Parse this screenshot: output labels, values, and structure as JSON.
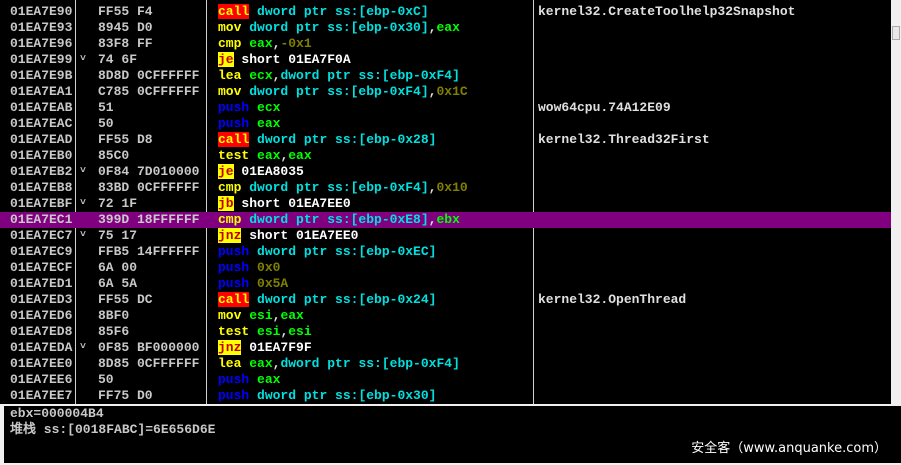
{
  "rows": [
    {
      "addr": "01EA7E90",
      "hex": "FF55 F4",
      "arrow": false,
      "ops": [
        [
          "call",
          "call"
        ],
        [
          " ",
          "p"
        ],
        [
          "dword ptr ss:[ebp-0xC]",
          "mem"
        ]
      ],
      "comment": "kernel32.CreateToolhelp32Snapshot"
    },
    {
      "addr": "01EA7E93",
      "hex": "8945 D0",
      "arrow": false,
      "ops": [
        [
          "mov",
          "ins"
        ],
        [
          " ",
          "p"
        ],
        [
          "dword ptr ss:[ebp-0x30]",
          "mem"
        ],
        [
          ",",
          "p"
        ],
        [
          "eax",
          "reg"
        ]
      ],
      "comment": ""
    },
    {
      "addr": "01EA7E96",
      "hex": "83F8 FF",
      "arrow": false,
      "ops": [
        [
          "cmp",
          "ins"
        ],
        [
          " ",
          "p"
        ],
        [
          "eax",
          "reg"
        ],
        [
          ",",
          "p"
        ],
        [
          "-0x1",
          "imm"
        ]
      ],
      "comment": ""
    },
    {
      "addr": "01EA7E99",
      "hex": "74 6F",
      "arrow": true,
      "ops": [
        [
          "je",
          "jmp"
        ],
        [
          " short 01EA7F0A",
          "tgt"
        ]
      ],
      "comment": ""
    },
    {
      "addr": "01EA7E9B",
      "hex": "8D8D 0CFFFFFF",
      "arrow": false,
      "ops": [
        [
          "lea",
          "ins"
        ],
        [
          " ",
          "p"
        ],
        [
          "ecx",
          "reg"
        ],
        [
          ",",
          "p"
        ],
        [
          "dword ptr ss:[ebp-0xF4]",
          "mem"
        ]
      ],
      "comment": ""
    },
    {
      "addr": "01EA7EA1",
      "hex": "C785 0CFFFFFF",
      "arrow": false,
      "ops": [
        [
          "mov",
          "ins"
        ],
        [
          " ",
          "p"
        ],
        [
          "dword ptr ss:[ebp-0xF4]",
          "mem"
        ],
        [
          ",",
          "p"
        ],
        [
          "0x1C",
          "imm"
        ]
      ],
      "comment": ""
    },
    {
      "addr": "01EA7EAB",
      "hex": "51",
      "arrow": false,
      "ops": [
        [
          "push",
          "push"
        ],
        [
          " ",
          "p"
        ],
        [
          "ecx",
          "reg"
        ]
      ],
      "comment": "wow64cpu.74A12E09"
    },
    {
      "addr": "01EA7EAC",
      "hex": "50",
      "arrow": false,
      "ops": [
        [
          "push",
          "push"
        ],
        [
          " ",
          "p"
        ],
        [
          "eax",
          "reg"
        ]
      ],
      "comment": ""
    },
    {
      "addr": "01EA7EAD",
      "hex": "FF55 D8",
      "arrow": false,
      "ops": [
        [
          "call",
          "call"
        ],
        [
          " ",
          "p"
        ],
        [
          "dword ptr ss:[ebp-0x28]",
          "mem"
        ]
      ],
      "comment": "kernel32.Thread32First"
    },
    {
      "addr": "01EA7EB0",
      "hex": "85C0",
      "arrow": false,
      "ops": [
        [
          "test",
          "ins"
        ],
        [
          " ",
          "p"
        ],
        [
          "eax",
          "reg"
        ],
        [
          ",",
          "p"
        ],
        [
          "eax",
          "reg"
        ]
      ],
      "comment": ""
    },
    {
      "addr": "01EA7EB2",
      "hex": "0F84 7D010000",
      "arrow": true,
      "ops": [
        [
          "je",
          "jmp"
        ],
        [
          " 01EA8035",
          "tgt"
        ]
      ],
      "comment": ""
    },
    {
      "addr": "01EA7EB8",
      "hex": "83BD 0CFFFFFF",
      "arrow": false,
      "ops": [
        [
          "cmp",
          "ins"
        ],
        [
          " ",
          "p"
        ],
        [
          "dword ptr ss:[ebp-0xF4]",
          "mem"
        ],
        [
          ",",
          "p"
        ],
        [
          "0x10",
          "imm"
        ]
      ],
      "comment": ""
    },
    {
      "addr": "01EA7EBF",
      "hex": "72 1F",
      "arrow": true,
      "ops": [
        [
          "jb",
          "jmp"
        ],
        [
          " short 01EA7EE0",
          "tgt"
        ]
      ],
      "comment": ""
    },
    {
      "addr": "01EA7EC1",
      "hex": "399D 18FFFFFF",
      "arrow": false,
      "selected": true,
      "ops": [
        [
          "cmp",
          "ins"
        ],
        [
          " ",
          "p"
        ],
        [
          "dword ptr ss:[ebp-0xE8]",
          "mem"
        ],
        [
          ",",
          "p"
        ],
        [
          "ebx",
          "reg"
        ]
      ],
      "comment": ""
    },
    {
      "addr": "01EA7EC7",
      "hex": "75 17",
      "arrow": true,
      "ops": [
        [
          "jnz",
          "jmp"
        ],
        [
          " short 01EA7EE0",
          "tgt"
        ]
      ],
      "comment": ""
    },
    {
      "addr": "01EA7EC9",
      "hex": "FFB5 14FFFFFF",
      "arrow": false,
      "ops": [
        [
          "push",
          "push"
        ],
        [
          " ",
          "p"
        ],
        [
          "dword ptr ss:[ebp-0xEC]",
          "mem"
        ]
      ],
      "comment": ""
    },
    {
      "addr": "01EA7ECF",
      "hex": "6A 00",
      "arrow": false,
      "ops": [
        [
          "push",
          "push"
        ],
        [
          " ",
          "p"
        ],
        [
          "0x0",
          "imm"
        ]
      ],
      "comment": ""
    },
    {
      "addr": "01EA7ED1",
      "hex": "6A 5A",
      "arrow": false,
      "ops": [
        [
          "push",
          "push"
        ],
        [
          " ",
          "p"
        ],
        [
          "0x5A",
          "imm"
        ]
      ],
      "comment": ""
    },
    {
      "addr": "01EA7ED3",
      "hex": "FF55 DC",
      "arrow": false,
      "ops": [
        [
          "call",
          "call"
        ],
        [
          " ",
          "p"
        ],
        [
          "dword ptr ss:[ebp-0x24]",
          "mem"
        ]
      ],
      "comment": "kernel32.OpenThread"
    },
    {
      "addr": "01EA7ED6",
      "hex": "8BF0",
      "arrow": false,
      "ops": [
        [
          "mov",
          "ins"
        ],
        [
          " ",
          "p"
        ],
        [
          "esi",
          "reg"
        ],
        [
          ",",
          "p"
        ],
        [
          "eax",
          "reg"
        ]
      ],
      "comment": ""
    },
    {
      "addr": "01EA7ED8",
      "hex": "85F6",
      "arrow": false,
      "ops": [
        [
          "test",
          "ins"
        ],
        [
          " ",
          "p"
        ],
        [
          "esi",
          "reg"
        ],
        [
          ",",
          "p"
        ],
        [
          "esi",
          "reg"
        ]
      ],
      "comment": ""
    },
    {
      "addr": "01EA7EDA",
      "hex": "0F85 BF000000",
      "arrow": true,
      "ops": [
        [
          "jnz",
          "jmp"
        ],
        [
          " 01EA7F9F",
          "tgt"
        ]
      ],
      "comment": ""
    },
    {
      "addr": "01EA7EE0",
      "hex": "8D85 0CFFFFFF",
      "arrow": false,
      "ops": [
        [
          "lea",
          "ins"
        ],
        [
          " ",
          "p"
        ],
        [
          "eax",
          "reg"
        ],
        [
          ",",
          "p"
        ],
        [
          "dword ptr ss:[ebp-0xF4]",
          "mem"
        ]
      ],
      "comment": ""
    },
    {
      "addr": "01EA7EE6",
      "hex": "50",
      "arrow": false,
      "ops": [
        [
          "push",
          "push"
        ],
        [
          " ",
          "p"
        ],
        [
          "eax",
          "reg"
        ]
      ],
      "comment": ""
    },
    {
      "addr": "01EA7EE7",
      "hex": "FF75 D0",
      "arrow": false,
      "ops": [
        [
          "push",
          "push"
        ],
        [
          " ",
          "p"
        ],
        [
          "dword ptr ss:[ebp-0x30]",
          "mem"
        ]
      ],
      "comment": ""
    }
  ],
  "jump_arrow_glyph": "˅",
  "info": {
    "line1": "ebx=000004B4",
    "line2": "堆栈 ss:[0018FABC]=6E656D6E"
  },
  "watermark": "安全客（www.anquanke.com）",
  "colors": {
    "selected_row": "#800080",
    "call_bg": "#ff0000",
    "jump_bg": "#ffff00"
  }
}
